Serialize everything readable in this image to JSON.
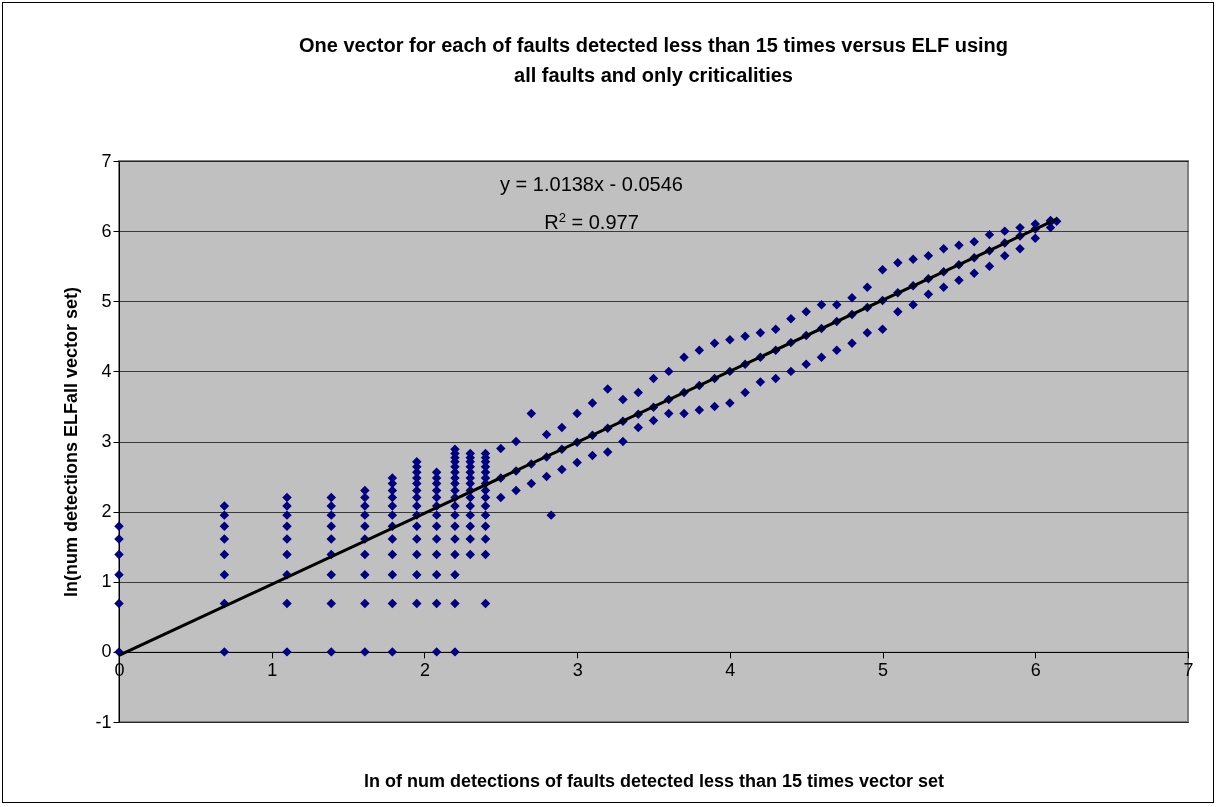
{
  "chart_data": {
    "type": "scatter",
    "title": "One vector for each of faults detected less than 15 times versus ELF using all faults and only criticalities",
    "xlabel": "ln of num detections of faults detected less than 15 times vector set",
    "ylabel": "ln(num detections ELFall vector set)",
    "xlim": [
      0,
      7
    ],
    "xticks": [
      0,
      1,
      2,
      3,
      4,
      5,
      6,
      7
    ],
    "ylim": [
      -1,
      7
    ],
    "yticks": [
      -1,
      0,
      1,
      2,
      3,
      4,
      5,
      6,
      7
    ],
    "grid": "y",
    "annotations": [
      "y = 1.0138x - 0.0546",
      "R$^{2}$ = 0.977"
    ],
    "series": [
      {
        "color": "#000080",
        "marker": "diamond",
        "x": [
          0,
          0,
          0,
          0,
          0,
          0,
          0.69,
          0.69,
          0.69,
          0.69,
          0.69,
          0.69,
          0.69,
          0.69,
          1.1,
          1.1,
          1.1,
          1.1,
          1.1,
          1.1,
          1.1,
          1.1,
          1.1,
          1.39,
          1.39,
          1.39,
          1.39,
          1.39,
          1.39,
          1.39,
          1.39,
          1.39,
          1.61,
          1.61,
          1.61,
          1.61,
          1.61,
          1.61,
          1.61,
          1.61,
          1.61,
          1.61,
          1.79,
          1.79,
          1.79,
          1.79,
          1.79,
          1.79,
          1.79,
          1.79,
          1.79,
          1.79,
          1.79,
          1.79,
          1.95,
          1.95,
          1.95,
          1.95,
          1.95,
          1.95,
          1.95,
          1.95,
          1.95,
          1.95,
          1.95,
          1.95,
          1.95,
          1.95,
          2.08,
          2.08,
          2.08,
          2.08,
          2.08,
          2.08,
          2.08,
          2.08,
          2.08,
          2.08,
          2.08,
          2.08,
          2.08,
          2.2,
          2.2,
          2.2,
          2.2,
          2.2,
          2.2,
          2.2,
          2.2,
          2.2,
          2.2,
          2.2,
          2.2,
          2.2,
          2.2,
          2.2,
          2.2,
          2.2,
          2.2,
          2.3,
          2.3,
          2.3,
          2.3,
          2.3,
          2.3,
          2.3,
          2.3,
          2.3,
          2.3,
          2.3,
          2.3,
          2.3,
          2.3,
          2.4,
          2.4,
          2.4,
          2.4,
          2.4,
          2.4,
          2.4,
          2.4,
          2.4,
          2.4,
          2.4,
          2.4,
          2.4,
          2.4,
          2.4,
          2.83,
          2.5,
          2.5,
          2.5,
          2.6,
          2.6,
          2.6,
          2.7,
          2.7,
          2.7,
          2.8,
          2.8,
          2.8,
          2.9,
          2.9,
          2.9,
          3.0,
          3.0,
          3.0,
          3.1,
          3.1,
          3.1,
          3.2,
          3.2,
          3.2,
          3.3,
          3.3,
          3.3,
          3.4,
          3.4,
          3.4,
          3.5,
          3.5,
          3.5,
          3.6,
          3.6,
          3.6,
          3.7,
          3.7,
          3.7,
          3.8,
          3.8,
          3.8,
          3.9,
          3.9,
          3.9,
          4.0,
          4.0,
          4.0,
          4.1,
          4.1,
          4.1,
          4.2,
          4.2,
          4.2,
          4.3,
          4.3,
          4.3,
          4.4,
          4.4,
          4.4,
          4.5,
          4.5,
          4.5,
          4.6,
          4.6,
          4.6,
          4.7,
          4.7,
          4.7,
          4.8,
          4.8,
          4.8,
          4.9,
          4.9,
          4.9,
          5.0,
          5.0,
          5.0,
          5.1,
          5.1,
          5.1,
          5.2,
          5.2,
          5.2,
          5.3,
          5.3,
          5.3,
          5.4,
          5.4,
          5.4,
          5.5,
          5.5,
          5.5,
          5.6,
          5.6,
          5.6,
          5.7,
          5.7,
          5.7,
          5.8,
          5.8,
          5.8,
          5.9,
          5.9,
          5.9,
          6.0,
          6.0,
          6.0,
          6.1,
          6.1,
          6.1,
          6.14
        ],
        "values": [
          0,
          0.69,
          1.1,
          1.39,
          1.61,
          1.79,
          0,
          0.69,
          1.1,
          1.39,
          1.61,
          1.79,
          1.95,
          2.08,
          0,
          0.69,
          1.1,
          1.39,
          1.61,
          1.79,
          1.95,
          2.08,
          2.2,
          0,
          0.69,
          1.1,
          1.39,
          1.61,
          1.79,
          1.95,
          2.08,
          2.2,
          0,
          0.69,
          1.1,
          1.39,
          1.61,
          1.79,
          1.95,
          2.08,
          2.2,
          2.3,
          0,
          0.69,
          1.1,
          1.39,
          1.61,
          1.79,
          1.95,
          2.08,
          2.2,
          2.3,
          2.4,
          2.48,
          0.69,
          1.1,
          1.39,
          1.61,
          1.79,
          1.95,
          2.08,
          2.2,
          2.3,
          2.4,
          2.48,
          2.56,
          2.64,
          2.71,
          0,
          0.69,
          1.1,
          1.39,
          1.61,
          1.79,
          1.95,
          2.08,
          2.2,
          2.3,
          2.4,
          2.48,
          2.56,
          0,
          0.69,
          1.1,
          1.39,
          1.61,
          1.79,
          1.95,
          2.08,
          2.2,
          2.3,
          2.4,
          2.48,
          2.56,
          2.64,
          2.71,
          2.77,
          2.83,
          2.89,
          1.39,
          1.61,
          1.79,
          1.95,
          2.08,
          2.2,
          2.3,
          2.4,
          2.48,
          2.56,
          2.64,
          2.71,
          2.77,
          2.83,
          0.69,
          1.39,
          1.61,
          1.79,
          1.95,
          2.08,
          2.2,
          2.3,
          2.4,
          2.48,
          2.56,
          2.64,
          2.71,
          2.77,
          2.83,
          1.95,
          2.2,
          2.48,
          2.9,
          2.3,
          2.58,
          3.0,
          2.4,
          2.68,
          3.4,
          2.5,
          2.78,
          3.1,
          2.6,
          2.89,
          3.2,
          2.7,
          2.99,
          3.4,
          2.8,
          3.09,
          3.55,
          2.85,
          3.19,
          3.75,
          3.0,
          3.29,
          3.6,
          3.2,
          3.39,
          3.7,
          3.3,
          3.49,
          3.9,
          3.4,
          3.6,
          4.0,
          3.4,
          3.7,
          4.2,
          3.45,
          3.8,
          4.3,
          3.5,
          3.9,
          4.4,
          3.55,
          4.0,
          4.45,
          3.7,
          4.1,
          4.5,
          3.85,
          4.2,
          4.55,
          3.9,
          4.3,
          4.6,
          4.0,
          4.41,
          4.75,
          4.1,
          4.51,
          4.85,
          4.2,
          4.61,
          4.95,
          4.3,
          4.71,
          4.95,
          4.4,
          4.81,
          5.05,
          4.55,
          4.91,
          5.2,
          4.6,
          5.01,
          5.45,
          4.85,
          5.12,
          5.55,
          4.95,
          5.22,
          5.6,
          5.1,
          5.32,
          5.65,
          5.2,
          5.42,
          5.75,
          5.3,
          5.52,
          5.8,
          5.4,
          5.62,
          5.85,
          5.5,
          5.72,
          5.95,
          5.65,
          5.83,
          6.0,
          5.75,
          5.93,
          6.05,
          5.9,
          6.03,
          6.1,
          6.05,
          6.13,
          6.15,
          6.14
        ]
      },
      {
        "type": "line",
        "color": "#000000",
        "marker": "none",
        "x": [
          0,
          6.14
        ],
        "values": [
          -0.05,
          6.17
        ]
      }
    ]
  }
}
